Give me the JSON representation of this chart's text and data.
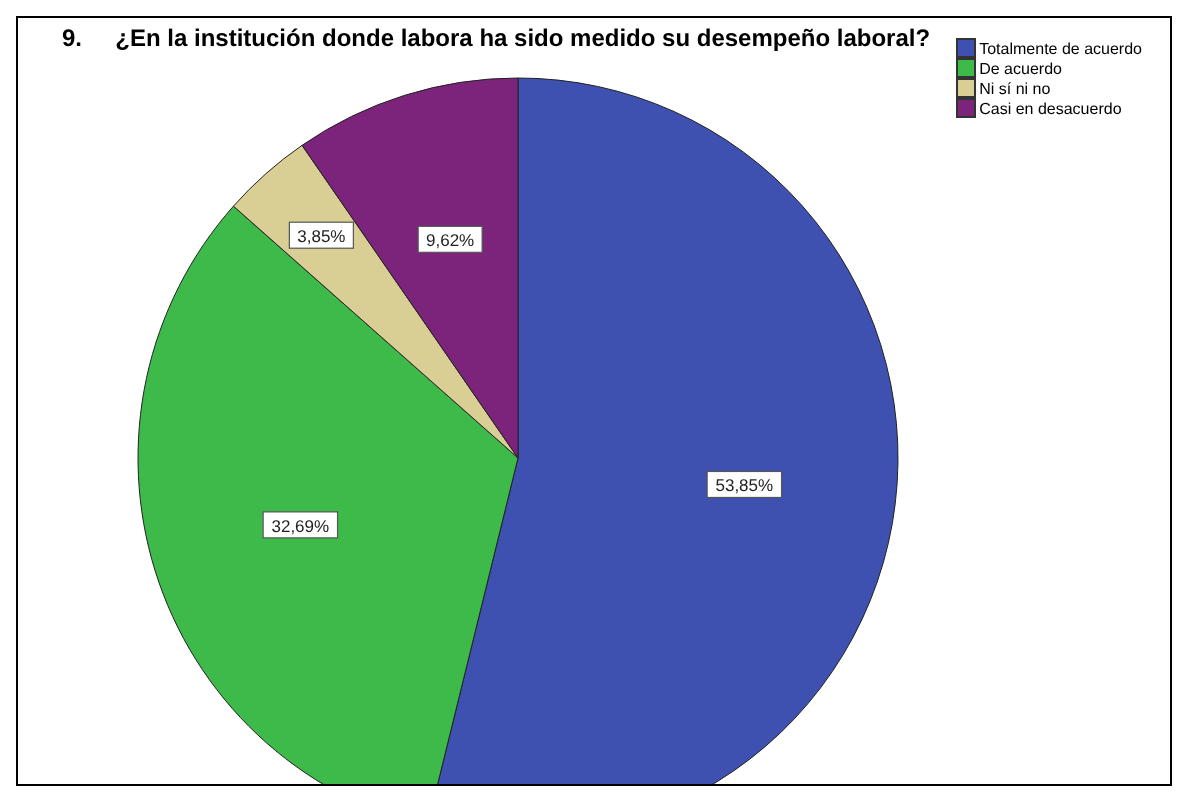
{
  "chart_data": {
    "type": "pie",
    "title": "9.     ¿En la institución donde labora ha sido medido su desempeño laboral?",
    "categories": [
      "Totalmente de acuerdo",
      "De acuerdo",
      "Ni sí ni no",
      "Casi en desacuerdo"
    ],
    "values": [
      53.85,
      32.69,
      3.85,
      9.62
    ],
    "colors": [
      "#3f51b0",
      "#3dba4a",
      "#d9cf95",
      "#7c237c"
    ],
    "value_labels": [
      "53,85%",
      "32,69%",
      "3,85%",
      "9,62%"
    ],
    "legend": "top right"
  }
}
